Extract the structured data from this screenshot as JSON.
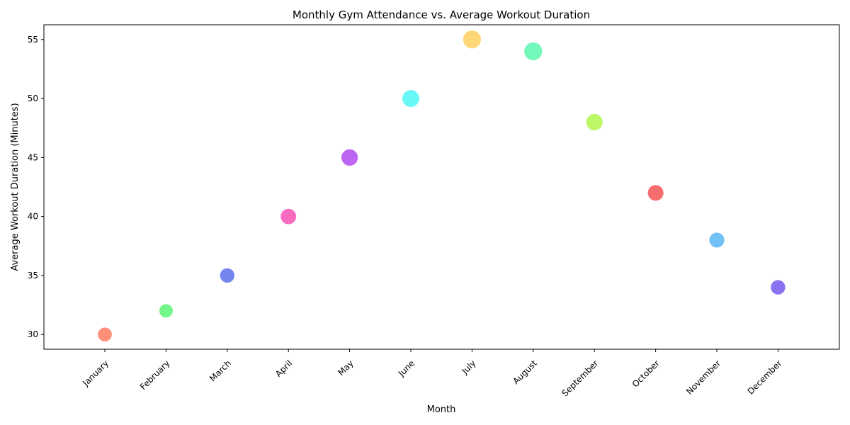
{
  "chart_data": {
    "type": "scatter",
    "title": "Monthly Gym Attendance vs. Average Workout Duration",
    "xlabel": "Month",
    "ylabel": "Average Workout Duration (Minutes)",
    "categories": [
      "January",
      "February",
      "March",
      "April",
      "May",
      "June",
      "July",
      "August",
      "September",
      "October",
      "November",
      "December"
    ],
    "values": [
      30,
      32,
      35,
      40,
      45,
      50,
      55,
      54,
      48,
      42,
      38,
      34
    ],
    "bubble_size_relative": [
      0.55,
      0.5,
      0.6,
      0.7,
      0.8,
      0.85,
      0.95,
      0.95,
      0.8,
      0.72,
      0.65,
      0.6
    ],
    "colors": [
      "#ff6f4f",
      "#4cf56a",
      "#4a64e8",
      "#f542b0",
      "#a93bf0",
      "#3cf5f5",
      "#ffcc4f",
      "#4cf5a8",
      "#a8f53c",
      "#f54242",
      "#4ab0f5",
      "#6a4af0"
    ],
    "ylim": [
      28.75,
      56.25
    ],
    "yticks": [
      30,
      35,
      40,
      45,
      50,
      55
    ],
    "grid": false,
    "legend": "none"
  }
}
